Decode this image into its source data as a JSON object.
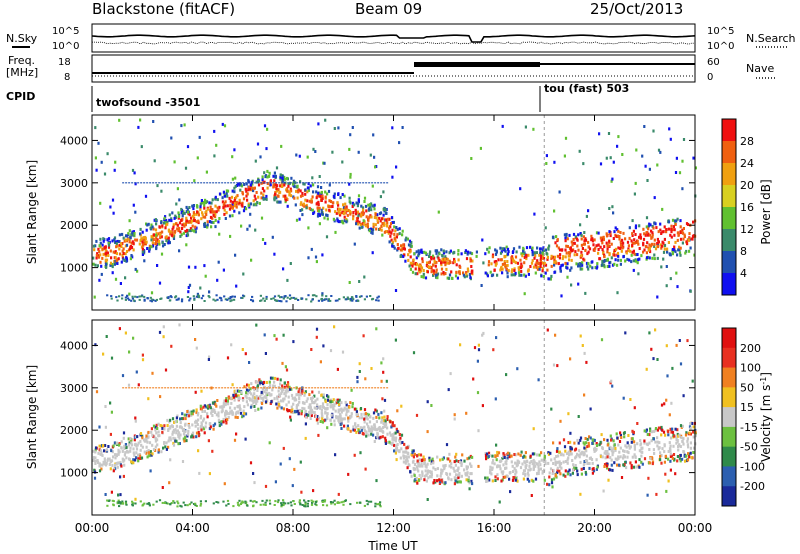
{
  "header": {
    "title": "Blackstone (fitACF)",
    "beam": "Beam 09",
    "date": "25/Oct/2013"
  },
  "noise_panel": {
    "left_label": "N.Sky",
    "right_label": "N.Search",
    "left_ticks": [
      "10^5",
      "10^0"
    ],
    "right_ticks": [
      "10^5",
      "10^0"
    ]
  },
  "freq_panel": {
    "left_label": "Freq.",
    "left_unit": "[MHz]",
    "right_label": "Nave",
    "left_ticks": [
      "18",
      "8"
    ],
    "right_ticks": [
      "60",
      "0"
    ]
  },
  "cpid": {
    "label": "CPID",
    "segments": [
      {
        "name": "twofsound -3501",
        "start": 0,
        "end": 18
      },
      {
        "name": "tou (fast) 503",
        "start": 18,
        "end": 24
      }
    ]
  },
  "chart_data": [
    {
      "type": "heatmap",
      "panel": "power",
      "ylabel": "Slant Range [km]",
      "colorbar_label": "Power [dB]",
      "colorbar_ticks": [
        "28",
        "24",
        "20",
        "16",
        "12",
        "8",
        "4"
      ],
      "colors": [
        "#1010f0",
        "#2050b0",
        "#3a8a6a",
        "#60c030",
        "#d8d020",
        "#f0a010",
        "#f06010",
        "#f01010"
      ],
      "y_ticks": [
        "4000",
        "3000",
        "2000",
        "1000"
      ],
      "y_range": [
        0,
        4600
      ],
      "x_range_hours": [
        0,
        24
      ],
      "x_tick_labels": [
        "00:00",
        "04:00",
        "08:00",
        "12:00",
        "16:00",
        "20:00",
        "00:00"
      ],
      "xlabel": ""
    },
    {
      "type": "heatmap",
      "panel": "velocity",
      "ylabel": "Slant Range [km]",
      "colorbar_label": "Velocity [m s^-1]",
      "colorbar_ticks": [
        "200",
        "100",
        "50",
        "15",
        "-15",
        "-50",
        "-100",
        "-200"
      ],
      "colors": [
        "#1a2a9a",
        "#2c5fb0",
        "#2f8a4a",
        "#6cc040",
        "#c8c8c8",
        "#f0c020",
        "#f08020",
        "#e83020",
        "#e01010"
      ],
      "y_ticks": [
        "4000",
        "3000",
        "2000",
        "1000"
      ],
      "y_range": [
        0,
        4600
      ],
      "x_range_hours": [
        0,
        24
      ],
      "x_tick_labels": [
        "00:00",
        "04:00",
        "08:00",
        "12:00",
        "16:00",
        "20:00",
        "00:00"
      ],
      "xlabel": "Time UT"
    }
  ]
}
